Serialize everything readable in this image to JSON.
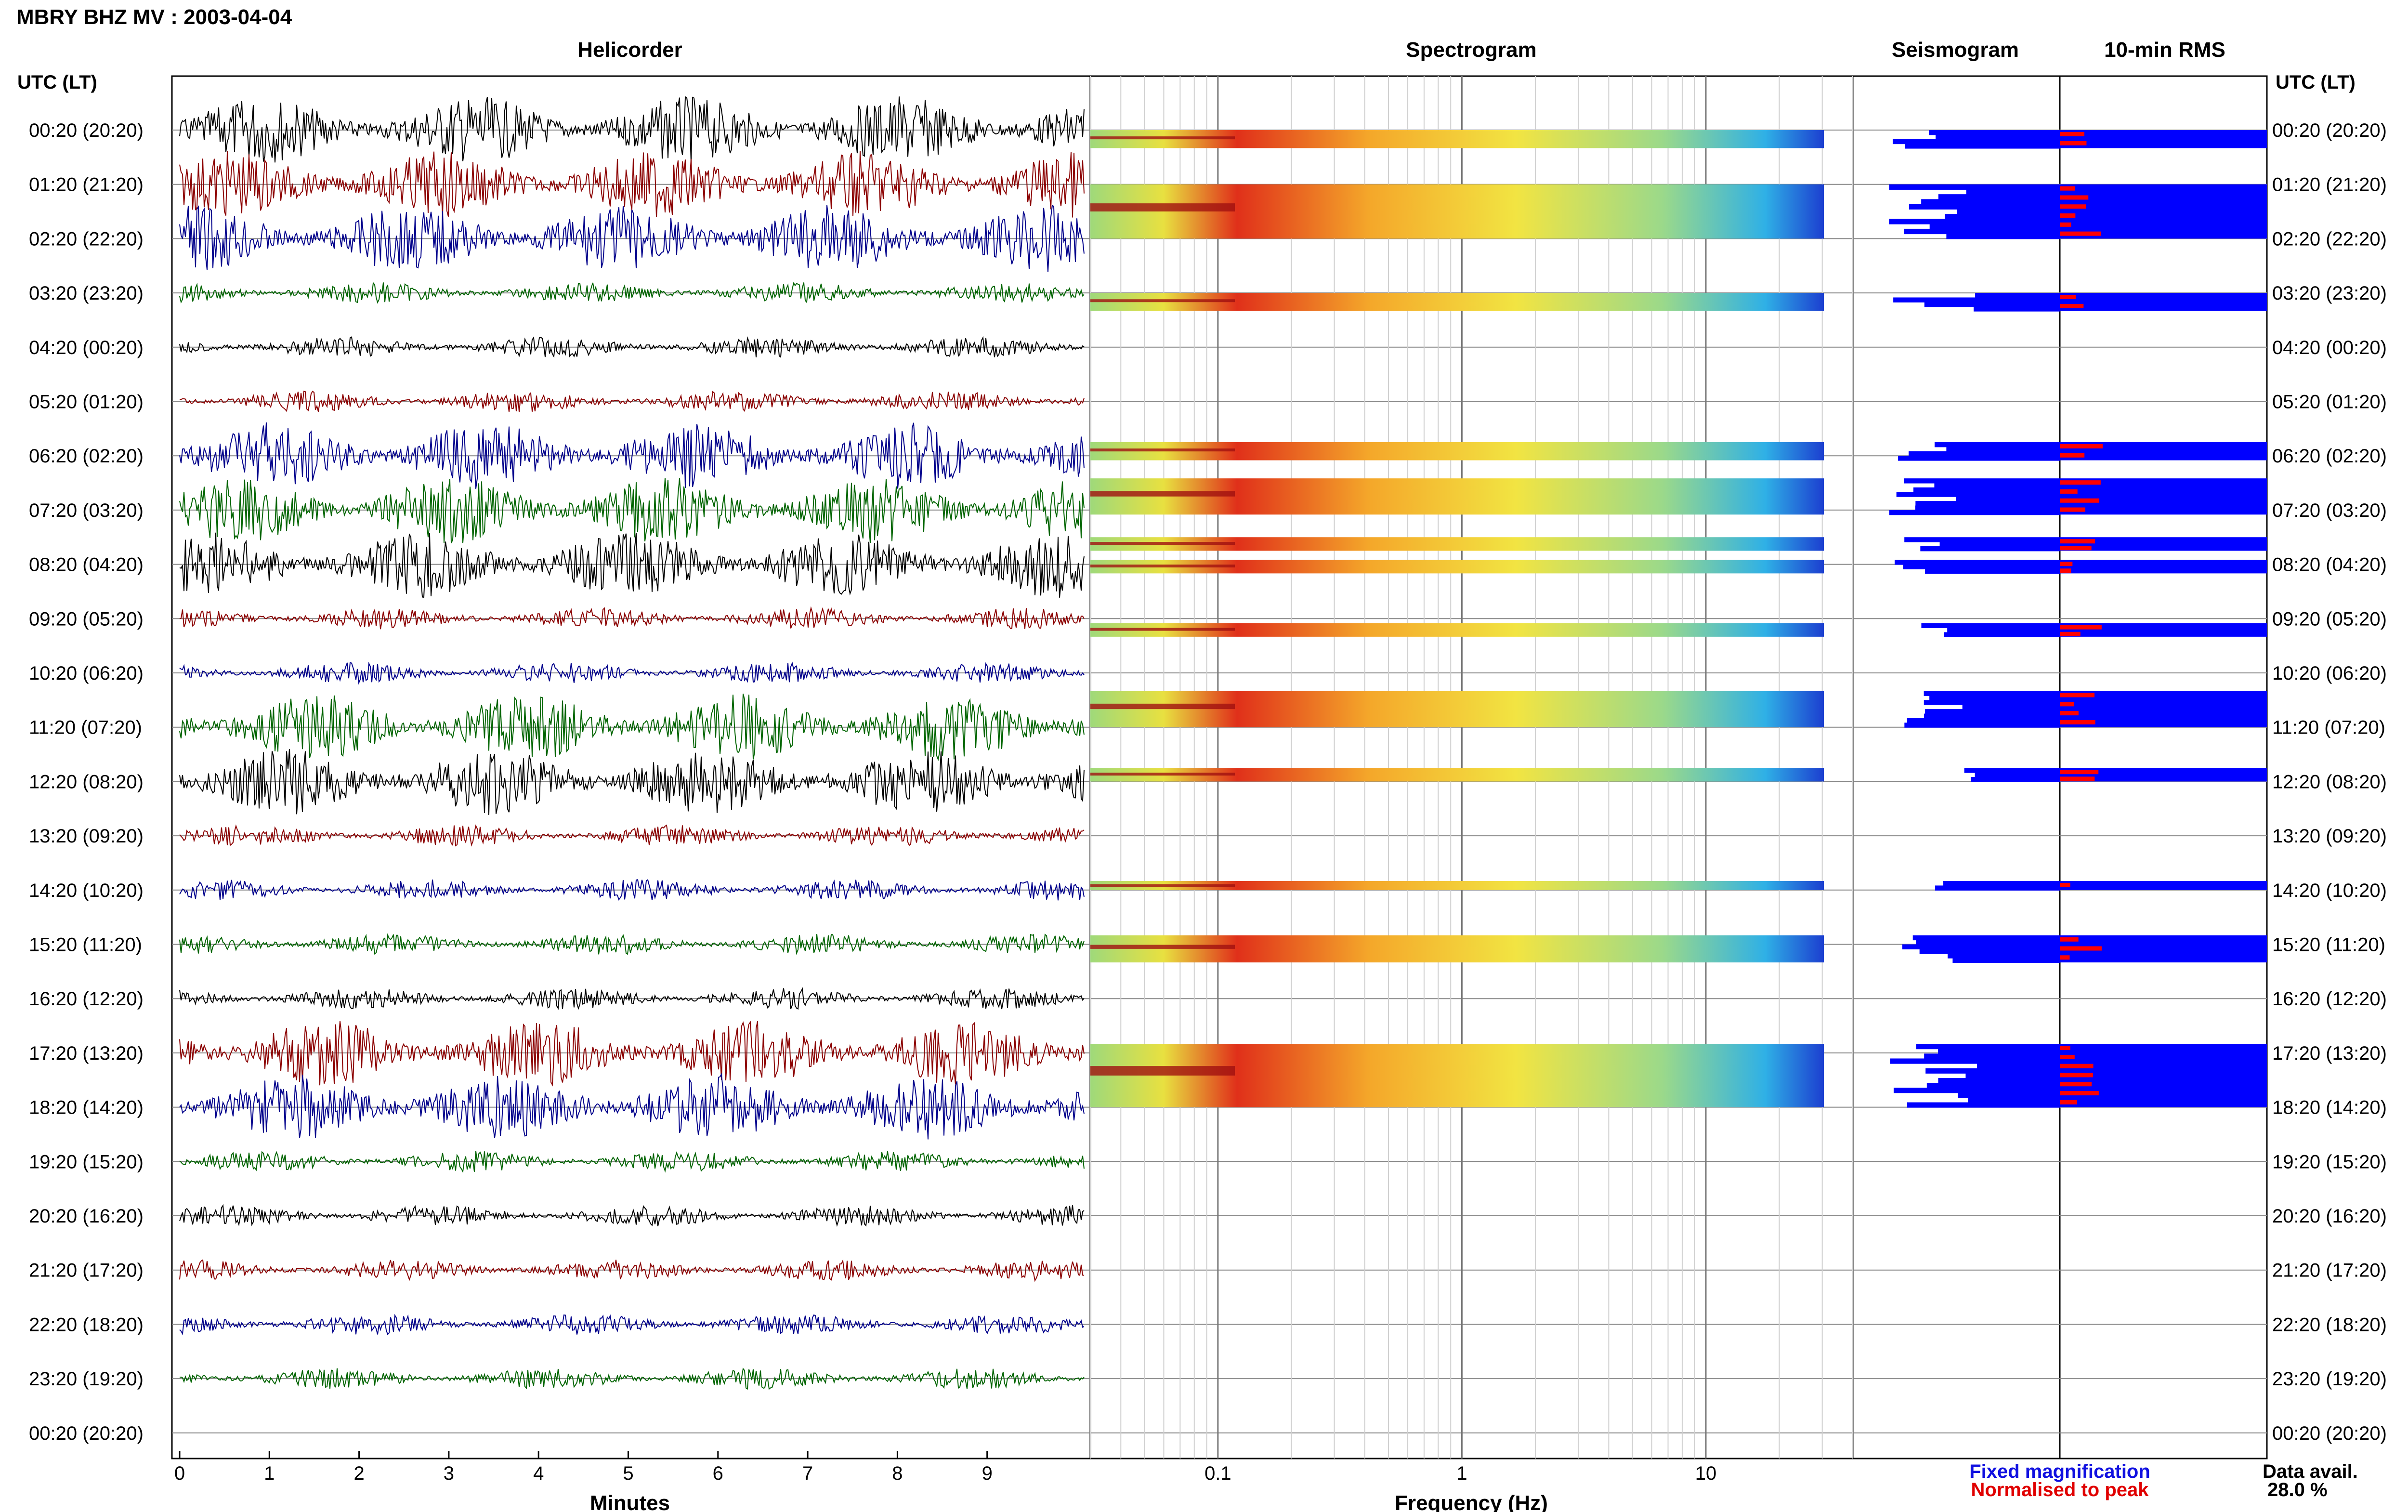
{
  "header": {
    "title": "MBRY BHZ MV : 2003-04-04",
    "utc_label_left": "UTC (LT)",
    "utc_label_right": "UTC (LT)"
  },
  "panels": {
    "helicorder": "Helicorder",
    "spectrogram": "Spectrogram",
    "seismogram": "Seismogram",
    "rms": "10-min RMS"
  },
  "axes": {
    "minutes_label": "Minutes",
    "frequency_label": "Frequency (Hz)",
    "minute_ticks": [
      "0",
      "1",
      "2",
      "3",
      "4",
      "5",
      "6",
      "7",
      "8",
      "9"
    ],
    "frequency_ticks": [
      "0.1",
      "1",
      "10"
    ]
  },
  "time_labels": [
    "00:20 (20:20)",
    "01:20 (21:20)",
    "02:20 (22:20)",
    "03:20 (23:20)",
    "04:20 (00:20)",
    "05:20 (01:20)",
    "06:20 (02:20)",
    "07:20 (03:20)",
    "08:20 (04:20)",
    "09:20 (05:20)",
    "10:20 (06:20)",
    "11:20 (07:20)",
    "12:20 (08:20)",
    "13:20 (09:20)",
    "14:20 (10:20)",
    "15:20 (11:20)",
    "16:20 (12:20)",
    "17:20 (13:20)",
    "18:20 (14:20)",
    "19:20 (15:20)",
    "20:20 (16:20)",
    "21:20 (17:20)",
    "22:20 (18:20)",
    "23:20 (19:20)",
    "00:20 (20:20)"
  ],
  "legend": {
    "fixed": "Fixed magnification",
    "normalised": "Normalised to peak",
    "fixed_color": "#1010e0",
    "normalised_color": "#e00000"
  },
  "data_avail": {
    "label": "Data avail.",
    "value": "28.0 %"
  },
  "colors": {
    "trace_cycle": [
      "#000000",
      "#8b0000",
      "#00008b",
      "#006400"
    ],
    "seismogram_fill": "#0000ff",
    "rms_peak": "#ff0000"
  },
  "chart_data": {
    "type": "heatmap",
    "title": "MBRY BHZ MV : 2003-04-04",
    "xlabel": "Frequency (Hz)",
    "xscale": "log",
    "xlim": [
      0.03,
      40
    ],
    "time_axis": "UTC hour rows, 00:20 to next-day 00:20",
    "helicorder": {
      "xlabel": "Minutes",
      "xlim": [
        0,
        10
      ],
      "rows": 24,
      "note_rows_with_large_amplitude": [
        "00:20",
        "01:20",
        "02:20",
        "06:20",
        "07:20",
        "08:20",
        "11:20",
        "12:20",
        "17:20",
        "18:20"
      ]
    },
    "data_segments_utc": [
      {
        "start": "00:20",
        "end": "00:40"
      },
      {
        "start": "01:20",
        "end": "02:20"
      },
      {
        "start": "03:20",
        "end": "03:40"
      },
      {
        "start": "06:05",
        "end": "06:25"
      },
      {
        "start": "06:45",
        "end": "07:25"
      },
      {
        "start": "07:50",
        "end": "08:05"
      },
      {
        "start": "08:15",
        "end": "08:30"
      },
      {
        "start": "09:25",
        "end": "09:40"
      },
      {
        "start": "10:40",
        "end": "11:20"
      },
      {
        "start": "12:05",
        "end": "12:20"
      },
      {
        "start": "14:10",
        "end": "14:20"
      },
      {
        "start": "15:10",
        "end": "15:40"
      },
      {
        "start": "17:10",
        "end": "18:20"
      }
    ],
    "data_availability_percent": 28.0
  }
}
